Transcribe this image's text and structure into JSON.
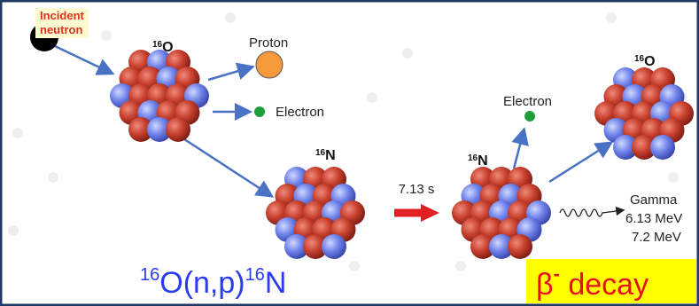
{
  "incident": {
    "line1": "Incident",
    "line2": "neutron"
  },
  "reactant": {
    "mass": "16",
    "symbol": "O"
  },
  "proton": "Proton",
  "electron_1": "Electron",
  "intermediate": {
    "mass": "16",
    "symbol": "N"
  },
  "half_life": "7.13 s",
  "decaying": {
    "mass": "16",
    "symbol": "N"
  },
  "electron_2": "Electron",
  "product": {
    "mass": "16",
    "symbol": "O"
  },
  "gamma": {
    "label": "Gamma",
    "energy_1": "6.13 MeV",
    "energy_2": "7.2 MeV"
  },
  "reaction": {
    "mass_1": "16",
    "part_1": "O(n,p)",
    "mass_2": "16",
    "part_2": "N"
  },
  "decay": {
    "symbol": "β",
    "charge": "-",
    "word": " decay"
  }
}
